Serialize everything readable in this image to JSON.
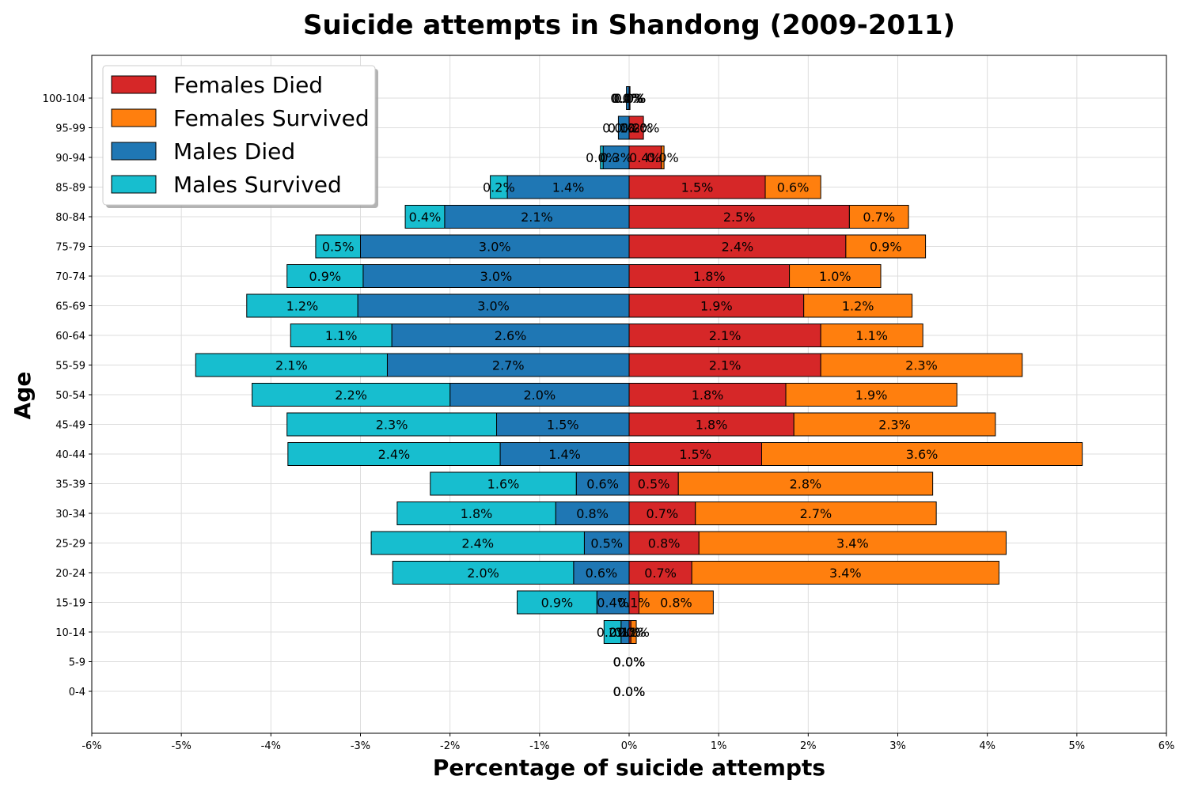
{
  "chart_data": {
    "type": "bar",
    "orientation": "horizontal-population-pyramid",
    "title": "Suicide attempts in Shandong (2009-2011)",
    "xlabel": "Percentage of suicide attempts",
    "ylabel": "Age",
    "xlim": [
      -6,
      6
    ],
    "x_ticks": [
      "-6%",
      "-5%",
      "-4%",
      "-3%",
      "-2%",
      "-1%",
      "0%",
      "1%",
      "2%",
      "3%",
      "4%",
      "5%",
      "6%"
    ],
    "x_tick_values": [
      -6,
      -5,
      -4,
      -3,
      -2,
      -1,
      0,
      1,
      2,
      3,
      4,
      5,
      6
    ],
    "categories": [
      "0-4",
      "5-9",
      "10-14",
      "15-19",
      "20-24",
      "25-29",
      "30-34",
      "35-39",
      "40-44",
      "45-49",
      "50-54",
      "55-59",
      "60-64",
      "65-69",
      "70-74",
      "75-79",
      "80-84",
      "85-89",
      "90-94",
      "95-99",
      "100-104"
    ],
    "grid": true,
    "legend_position": "top-left",
    "series": [
      {
        "name": "Females Died",
        "color": "#d62728",
        "side": "right",
        "values": [
          0.0,
          0.0,
          0.02,
          0.11,
          0.7,
          0.78,
          0.74,
          0.55,
          1.48,
          1.84,
          1.75,
          2.14,
          2.14,
          1.95,
          1.79,
          2.42,
          2.46,
          1.52,
          0.36,
          0.16,
          0.01
        ],
        "labels": [
          "0.0%",
          "0.0%",
          "0.0%",
          "0.1%",
          "0.7%",
          "0.8%",
          "0.7%",
          "0.5%",
          "1.5%",
          "1.8%",
          "1.8%",
          "2.1%",
          "2.1%",
          "1.9%",
          "1.8%",
          "2.4%",
          "2.5%",
          "1.5%",
          "0.4%",
          "0.2%",
          "0.0%"
        ]
      },
      {
        "name": "Females Survived",
        "color": "#ff7f0e",
        "side": "right",
        "values": [
          0.0,
          0.0,
          0.06,
          0.83,
          3.43,
          3.43,
          2.69,
          2.84,
          3.58,
          2.25,
          1.91,
          2.25,
          1.14,
          1.21,
          1.02,
          0.89,
          0.66,
          0.62,
          0.03,
          0.0,
          0.0
        ],
        "labels": [
          "0.0%",
          "0.0%",
          "0.1%",
          "0.8%",
          "3.4%",
          "3.4%",
          "2.7%",
          "2.8%",
          "3.6%",
          "2.3%",
          "1.9%",
          "2.3%",
          "1.1%",
          "1.2%",
          "1.0%",
          "0.9%",
          "0.7%",
          "0.6%",
          "0.0%",
          "0.0%",
          "0.0%"
        ]
      },
      {
        "name": "Males Died",
        "color": "#1f77b4",
        "side": "left",
        "values": [
          0.0,
          0.0,
          0.09,
          0.36,
          0.62,
          0.5,
          0.82,
          0.59,
          1.44,
          1.48,
          2.0,
          2.7,
          2.65,
          3.03,
          2.97,
          3.0,
          2.06,
          1.36,
          0.29,
          0.12,
          0.03
        ],
        "labels": [
          "0.0%",
          "0.0%",
          "0.1%",
          "0.4%",
          "0.6%",
          "0.5%",
          "0.8%",
          "0.6%",
          "1.4%",
          "1.5%",
          "2.0%",
          "2.7%",
          "2.6%",
          "3.0%",
          "3.0%",
          "3.0%",
          "2.1%",
          "1.4%",
          "0.3%",
          "0.1%",
          "0.0%"
        ]
      },
      {
        "name": "Males Survived",
        "color": "#17becf",
        "side": "left",
        "values": [
          0.0,
          0.0,
          0.19,
          0.89,
          2.02,
          2.38,
          1.77,
          1.63,
          2.37,
          2.34,
          2.21,
          2.14,
          1.13,
          1.24,
          0.85,
          0.5,
          0.44,
          0.19,
          0.03,
          0.0,
          0.0
        ],
        "labels": [
          "0.0%",
          "0.0%",
          "0.2%",
          "0.9%",
          "2.0%",
          "2.4%",
          "1.8%",
          "1.6%",
          "2.4%",
          "2.3%",
          "2.2%",
          "2.1%",
          "1.1%",
          "1.2%",
          "0.9%",
          "0.5%",
          "0.4%",
          "0.2%",
          "0.0%",
          "0.0%",
          "0.0%"
        ]
      }
    ]
  }
}
